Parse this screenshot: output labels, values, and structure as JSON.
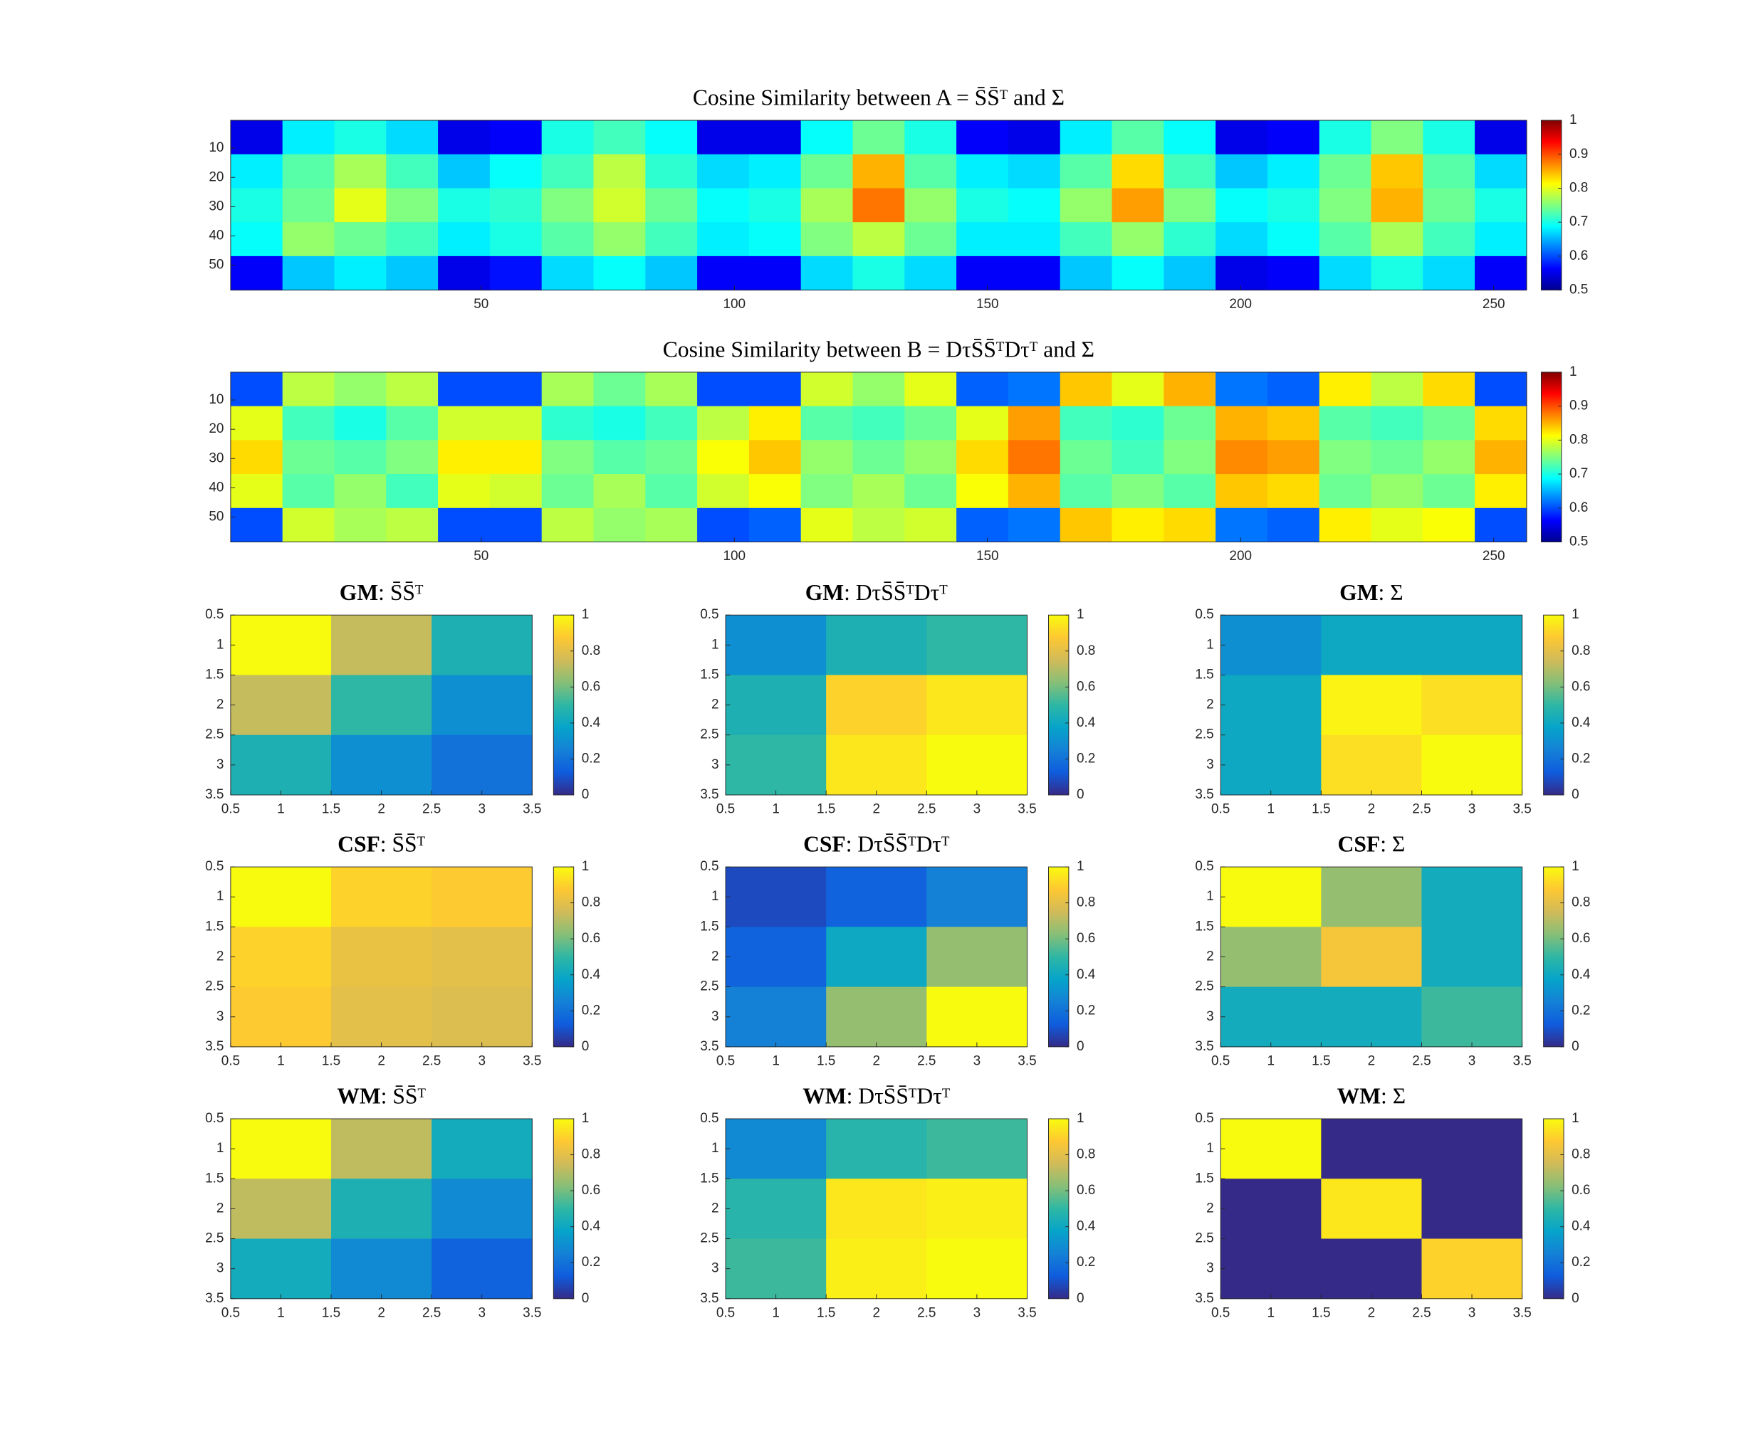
{
  "chart_data": [
    {
      "type": "heatmap",
      "title": [
        "Cosine Similarity between A = S̄S̄ᵀ and Σ"
      ],
      "colormap": "jet",
      "clim": [
        0.5,
        1
      ],
      "cticks": [
        0.5,
        0.6,
        0.7,
        0.8,
        0.9,
        1
      ],
      "xlim": [
        0.5,
        256.5
      ],
      "ylim": [
        0.5,
        58.5
      ],
      "xticks": [
        50,
        100,
        150,
        200,
        250
      ],
      "yticks": [
        10,
        20,
        30,
        40,
        50
      ],
      "y_reversed": true,
      "z": [
        [
          0.55,
          0.68,
          0.7,
          0.67,
          0.55,
          0.56,
          0.7,
          0.72,
          0.69,
          0.55,
          0.55,
          0.69,
          0.74,
          0.7,
          0.56,
          0.55,
          0.68,
          0.73,
          0.69,
          0.55,
          0.56,
          0.7,
          0.75,
          0.7,
          0.55
        ],
        [
          0.68,
          0.73,
          0.77,
          0.72,
          0.66,
          0.69,
          0.72,
          0.78,
          0.71,
          0.67,
          0.68,
          0.74,
          0.85,
          0.73,
          0.68,
          0.67,
          0.73,
          0.83,
          0.72,
          0.66,
          0.68,
          0.74,
          0.84,
          0.73,
          0.67
        ],
        [
          0.7,
          0.74,
          0.8,
          0.75,
          0.7,
          0.71,
          0.75,
          0.79,
          0.74,
          0.69,
          0.7,
          0.77,
          0.88,
          0.76,
          0.7,
          0.69,
          0.76,
          0.86,
          0.75,
          0.69,
          0.7,
          0.75,
          0.85,
          0.74,
          0.7
        ],
        [
          0.69,
          0.76,
          0.74,
          0.72,
          0.68,
          0.7,
          0.73,
          0.76,
          0.72,
          0.68,
          0.69,
          0.75,
          0.78,
          0.74,
          0.68,
          0.68,
          0.72,
          0.76,
          0.71,
          0.67,
          0.69,
          0.73,
          0.77,
          0.72,
          0.68
        ],
        [
          0.56,
          0.66,
          0.68,
          0.66,
          0.55,
          0.57,
          0.67,
          0.69,
          0.66,
          0.56,
          0.56,
          0.67,
          0.7,
          0.67,
          0.56,
          0.56,
          0.66,
          0.69,
          0.66,
          0.55,
          0.56,
          0.67,
          0.7,
          0.67,
          0.56
        ]
      ]
    },
    {
      "type": "heatmap",
      "title": [
        "Cosine Similarity between B = DτS̄S̄ᵀDτᵀ and Σ"
      ],
      "colormap": "jet",
      "clim": [
        0.5,
        1
      ],
      "cticks": [
        0.5,
        0.6,
        0.7,
        0.8,
        0.9,
        1
      ],
      "xlim": [
        0.5,
        256.5
      ],
      "ylim": [
        0.5,
        58.5
      ],
      "xticks": [
        50,
        100,
        150,
        200,
        250
      ],
      "yticks": [
        10,
        20,
        30,
        40,
        50
      ],
      "y_reversed": true,
      "z": [
        [
          0.6,
          0.78,
          0.76,
          0.78,
          0.6,
          0.6,
          0.77,
          0.74,
          0.77,
          0.6,
          0.6,
          0.79,
          0.76,
          0.8,
          0.61,
          0.62,
          0.84,
          0.8,
          0.85,
          0.62,
          0.61,
          0.82,
          0.78,
          0.83,
          0.6
        ],
        [
          0.8,
          0.72,
          0.7,
          0.73,
          0.79,
          0.79,
          0.71,
          0.7,
          0.72,
          0.78,
          0.82,
          0.73,
          0.72,
          0.74,
          0.8,
          0.86,
          0.72,
          0.71,
          0.74,
          0.85,
          0.84,
          0.73,
          0.72,
          0.74,
          0.83
        ],
        [
          0.83,
          0.74,
          0.73,
          0.75,
          0.82,
          0.82,
          0.75,
          0.73,
          0.74,
          0.81,
          0.84,
          0.76,
          0.74,
          0.76,
          0.83,
          0.88,
          0.74,
          0.72,
          0.75,
          0.87,
          0.86,
          0.75,
          0.74,
          0.76,
          0.85
        ],
        [
          0.8,
          0.73,
          0.76,
          0.72,
          0.8,
          0.79,
          0.74,
          0.77,
          0.73,
          0.79,
          0.81,
          0.75,
          0.77,
          0.74,
          0.81,
          0.85,
          0.73,
          0.75,
          0.73,
          0.84,
          0.83,
          0.74,
          0.76,
          0.74,
          0.82
        ],
        [
          0.6,
          0.79,
          0.77,
          0.78,
          0.6,
          0.6,
          0.78,
          0.76,
          0.77,
          0.6,
          0.61,
          0.8,
          0.78,
          0.79,
          0.61,
          0.62,
          0.84,
          0.82,
          0.83,
          0.62,
          0.61,
          0.82,
          0.8,
          0.81,
          0.6
        ]
      ]
    },
    {
      "type": "heatmap",
      "title": [
        "GM",
        ": S̄S̄ᵀ"
      ],
      "colormap": "parula",
      "clim": [
        0,
        1
      ],
      "cticks": [
        0,
        0.2,
        0.4,
        0.6,
        0.8,
        1
      ],
      "xlim": [
        0.5,
        3.5
      ],
      "ylim": [
        0.5,
        3.5
      ],
      "xticks": [
        0.5,
        1,
        1.5,
        2,
        2.5,
        3,
        3.5
      ],
      "yticks": [
        0.5,
        1,
        1.5,
        2,
        2.5,
        3,
        3.5
      ],
      "y_reversed": true,
      "z": [
        [
          1,
          0.73,
          0.45
        ],
        [
          0.73,
          0.5,
          0.3
        ],
        [
          0.45,
          0.3,
          0.2
        ]
      ]
    },
    {
      "type": "heatmap",
      "title": [
        "GM",
        ": DτS̄S̄ᵀDτᵀ"
      ],
      "colormap": "parula",
      "clim": [
        0,
        1
      ],
      "cticks": [
        0,
        0.2,
        0.4,
        0.6,
        0.8,
        1
      ],
      "xlim": [
        0.5,
        3.5
      ],
      "ylim": [
        0.5,
        3.5
      ],
      "xticks": [
        0.5,
        1,
        1.5,
        2,
        2.5,
        3,
        3.5
      ],
      "yticks": [
        0.5,
        1,
        1.5,
        2,
        2.5,
        3,
        3.5
      ],
      "y_reversed": true,
      "z": [
        [
          0.3,
          0.45,
          0.5
        ],
        [
          0.45,
          0.9,
          0.95
        ],
        [
          0.5,
          0.95,
          1
        ]
      ]
    },
    {
      "type": "heatmap",
      "title": [
        "GM",
        ": Σ"
      ],
      "colormap": "parula",
      "clim": [
        0,
        1
      ],
      "cticks": [
        0,
        0.2,
        0.4,
        0.6,
        0.8,
        1
      ],
      "xlim": [
        0.5,
        3.5
      ],
      "ylim": [
        0.5,
        3.5
      ],
      "xticks": [
        0.5,
        1,
        1.5,
        2,
        2.5,
        3,
        3.5
      ],
      "yticks": [
        0.5,
        1,
        1.5,
        2,
        2.5,
        3,
        3.5
      ],
      "y_reversed": true,
      "z": [
        [
          0.3,
          0.4,
          0.4
        ],
        [
          0.4,
          0.98,
          0.93
        ],
        [
          0.4,
          0.93,
          1
        ]
      ]
    },
    {
      "type": "heatmap",
      "title": [
        "CSF",
        ": S̄S̄ᵀ"
      ],
      "colormap": "parula",
      "clim": [
        0,
        1
      ],
      "cticks": [
        0,
        0.2,
        0.4,
        0.6,
        0.8,
        1
      ],
      "xlim": [
        0.5,
        3.5
      ],
      "ylim": [
        0.5,
        3.5
      ],
      "xticks": [
        0.5,
        1,
        1.5,
        2,
        2.5,
        3,
        3.5
      ],
      "yticks": [
        0.5,
        1,
        1.5,
        2,
        2.5,
        3,
        3.5
      ],
      "y_reversed": true,
      "z": [
        [
          1,
          0.9,
          0.88
        ],
        [
          0.9,
          0.82,
          0.8
        ],
        [
          0.88,
          0.8,
          0.78
        ]
      ]
    },
    {
      "type": "heatmap",
      "title": [
        "CSF",
        ": DτS̄S̄ᵀDτᵀ"
      ],
      "colormap": "parula",
      "clim": [
        0,
        1
      ],
      "cticks": [
        0,
        0.2,
        0.4,
        0.6,
        0.8,
        1
      ],
      "xlim": [
        0.5,
        3.5
      ],
      "ylim": [
        0.5,
        3.5
      ],
      "xticks": [
        0.5,
        1,
        1.5,
        2,
        2.5,
        3,
        3.5
      ],
      "yticks": [
        0.5,
        1,
        1.5,
        2,
        2.5,
        3,
        3.5
      ],
      "y_reversed": true,
      "z": [
        [
          0.08,
          0.15,
          0.25
        ],
        [
          0.15,
          0.4,
          0.65
        ],
        [
          0.25,
          0.65,
          1
        ]
      ]
    },
    {
      "type": "heatmap",
      "title": [
        "CSF",
        ": Σ"
      ],
      "colormap": "parula",
      "clim": [
        0,
        1
      ],
      "cticks": [
        0,
        0.2,
        0.4,
        0.6,
        0.8,
        1
      ],
      "xlim": [
        0.5,
        3.5
      ],
      "ylim": [
        0.5,
        3.5
      ],
      "xticks": [
        0.5,
        1,
        1.5,
        2,
        2.5,
        3,
        3.5
      ],
      "yticks": [
        0.5,
        1,
        1.5,
        2,
        2.5,
        3,
        3.5
      ],
      "y_reversed": true,
      "z": [
        [
          1,
          0.65,
          0.42
        ],
        [
          0.65,
          0.85,
          0.42
        ],
        [
          0.42,
          0.42,
          0.52
        ]
      ]
    },
    {
      "type": "heatmap",
      "title": [
        "WM",
        ": S̄S̄ᵀ"
      ],
      "colormap": "parula",
      "clim": [
        0,
        1
      ],
      "cticks": [
        0,
        0.2,
        0.4,
        0.6,
        0.8,
        1
      ],
      "xlim": [
        0.5,
        3.5
      ],
      "ylim": [
        0.5,
        3.5
      ],
      "xticks": [
        0.5,
        1,
        1.5,
        2,
        2.5,
        3,
        3.5
      ],
      "yticks": [
        0.5,
        1,
        1.5,
        2,
        2.5,
        3,
        3.5
      ],
      "y_reversed": true,
      "z": [
        [
          1,
          0.72,
          0.42
        ],
        [
          0.72,
          0.45,
          0.28
        ],
        [
          0.42,
          0.28,
          0.15
        ]
      ]
    },
    {
      "type": "heatmap",
      "title": [
        "WM",
        ": DτS̄S̄ᵀDτᵀ"
      ],
      "colormap": "parula",
      "clim": [
        0,
        1
      ],
      "cticks": [
        0,
        0.2,
        0.4,
        0.6,
        0.8,
        1
      ],
      "xlim": [
        0.5,
        3.5
      ],
      "ylim": [
        0.5,
        3.5
      ],
      "xticks": [
        0.5,
        1,
        1.5,
        2,
        2.5,
        3,
        3.5
      ],
      "yticks": [
        0.5,
        1,
        1.5,
        2,
        2.5,
        3,
        3.5
      ],
      "y_reversed": true,
      "z": [
        [
          0.28,
          0.48,
          0.52
        ],
        [
          0.48,
          0.95,
          0.97
        ],
        [
          0.52,
          0.97,
          1
        ]
      ]
    },
    {
      "type": "heatmap",
      "title": [
        "WM",
        ": Σ"
      ],
      "colormap": "parula",
      "clim": [
        0,
        1
      ],
      "cticks": [
        0,
        0.2,
        0.4,
        0.6,
        0.8,
        1
      ],
      "xlim": [
        0.5,
        3.5
      ],
      "ylim": [
        0.5,
        3.5
      ],
      "xticks": [
        0.5,
        1,
        1.5,
        2,
        2.5,
        3,
        3.5
      ],
      "yticks": [
        0.5,
        1,
        1.5,
        2,
        2.5,
        3,
        3.5
      ],
      "y_reversed": true,
      "z": [
        [
          1,
          0,
          0
        ],
        [
          0,
          0.95,
          0
        ],
        [
          0,
          0,
          0.9
        ]
      ]
    }
  ]
}
